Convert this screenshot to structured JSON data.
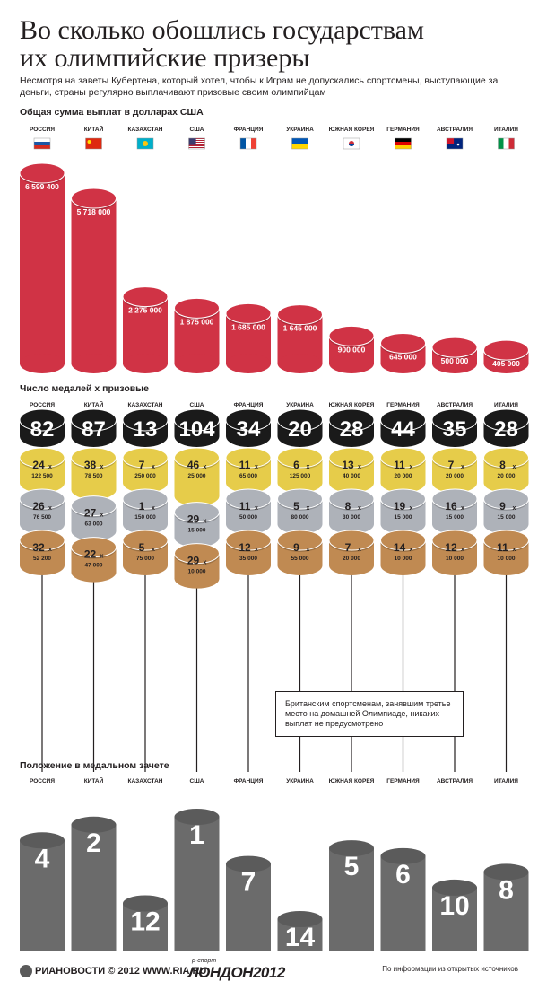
{
  "title_line1": "Во сколько обошлись государствам",
  "title_line2": "их олимпийские призеры",
  "subtitle": "Несмотря на заветы Кубертена, который хотел, чтобы к Играм не допускались спортсмены, выступающие за деньги, страны регулярно выплачивают призовые своим олимпийцам",
  "section_payout": "Общая сумма выплат в долларах США",
  "section_medals": "Число медалей х призовые",
  "section_rank": "Положение в медальном зачете",
  "uk_note": "Британским спортсменам, занявшим третье место на домашней Олимпиаде, никаких выплат не предусмотрено",
  "footer": {
    "logo": "РИАНОВОСТИ © 2012 WWW.RIA.RU",
    "sport_small": "р-спорт",
    "sport_big": "ЛОНДОН2012",
    "source": "По информации из открытых источников"
  },
  "colors": {
    "red": "#d03345",
    "gold": "#e6cc4a",
    "silver": "#aeb2b9",
    "bronze": "#c08a52",
    "black": "#1a1a1a",
    "grey": "#6b6b6b"
  },
  "chart_data": {
    "type": "bar",
    "countries": [
      "РОССИЯ",
      "КИТАЙ",
      "КАЗАХСТАН",
      "США",
      "ФРАНЦИЯ",
      "УКРАИНА",
      "ЮЖНАЯ КОРЕЯ",
      "ГЕРМАНИЯ",
      "АВСТРАЛИЯ",
      "ИТАЛИЯ"
    ],
    "flag_icons": [
      "russia-flag",
      "china-flag",
      "kazakhstan-flag",
      "usa-flag",
      "france-flag",
      "ukraine-flag",
      "south-korea-flag",
      "germany-flag",
      "australia-flag",
      "italy-flag"
    ],
    "payouts": [
      6599400,
      5718000,
      2275000,
      1875000,
      1685000,
      1645000,
      900000,
      645000,
      500000,
      405000
    ],
    "payout_labels": [
      "6 599 400",
      "5 718 000",
      "2 275 000",
      "1 875 000",
      "1 685 000",
      "1 645 000",
      "900 000",
      "645 000",
      "500 000",
      "405 000"
    ],
    "total_medals": [
      "82",
      "87",
      "13",
      "104",
      "34",
      "20",
      "28",
      "44",
      "35",
      "28"
    ],
    "medals": [
      {
        "gold": {
          "n": "24",
          "prize": "122 500"
        },
        "silver": {
          "n": "26",
          "prize": "76 500"
        },
        "bronze": {
          "n": "32",
          "prize": "52 200"
        }
      },
      {
        "gold": {
          "n": "38",
          "prize": "78 500"
        },
        "silver": {
          "n": "27",
          "prize": "63 000"
        },
        "bronze": {
          "n": "22",
          "prize": "47 000"
        }
      },
      {
        "gold": {
          "n": "7",
          "prize": "250 000"
        },
        "silver": {
          "n": "1",
          "prize": "150 000"
        },
        "bronze": {
          "n": "5",
          "prize": "75 000"
        }
      },
      {
        "gold": {
          "n": "46",
          "prize": "25 000"
        },
        "silver": {
          "n": "29",
          "prize": "15 000"
        },
        "bronze": {
          "n": "29",
          "prize": "10 000"
        }
      },
      {
        "gold": {
          "n": "11",
          "prize": "65 000"
        },
        "silver": {
          "n": "11",
          "prize": "50 000"
        },
        "bronze": {
          "n": "12",
          "prize": "35 000"
        }
      },
      {
        "gold": {
          "n": "6",
          "prize": "125 000"
        },
        "silver": {
          "n": "5",
          "prize": "80 000"
        },
        "bronze": {
          "n": "9",
          "prize": "55 000"
        }
      },
      {
        "gold": {
          "n": "13",
          "prize": "40 000"
        },
        "silver": {
          "n": "8",
          "prize": "30 000"
        },
        "bronze": {
          "n": "7",
          "prize": "20 000"
        }
      },
      {
        "gold": {
          "n": "11",
          "prize": "20 000"
        },
        "silver": {
          "n": "19",
          "prize": "15 000"
        },
        "bronze": {
          "n": "14",
          "prize": "10 000"
        }
      },
      {
        "gold": {
          "n": "7",
          "prize": "20 000"
        },
        "silver": {
          "n": "16",
          "prize": "15 000"
        },
        "bronze": {
          "n": "12",
          "prize": "10 000"
        }
      },
      {
        "gold": {
          "n": "8",
          "prize": "20 000"
        },
        "silver": {
          "n": "9",
          "prize": "15 000"
        },
        "bronze": {
          "n": "11",
          "prize": "10 000"
        }
      }
    ],
    "rank": [
      4,
      2,
      12,
      1,
      7,
      14,
      5,
      6,
      10,
      8
    ]
  }
}
